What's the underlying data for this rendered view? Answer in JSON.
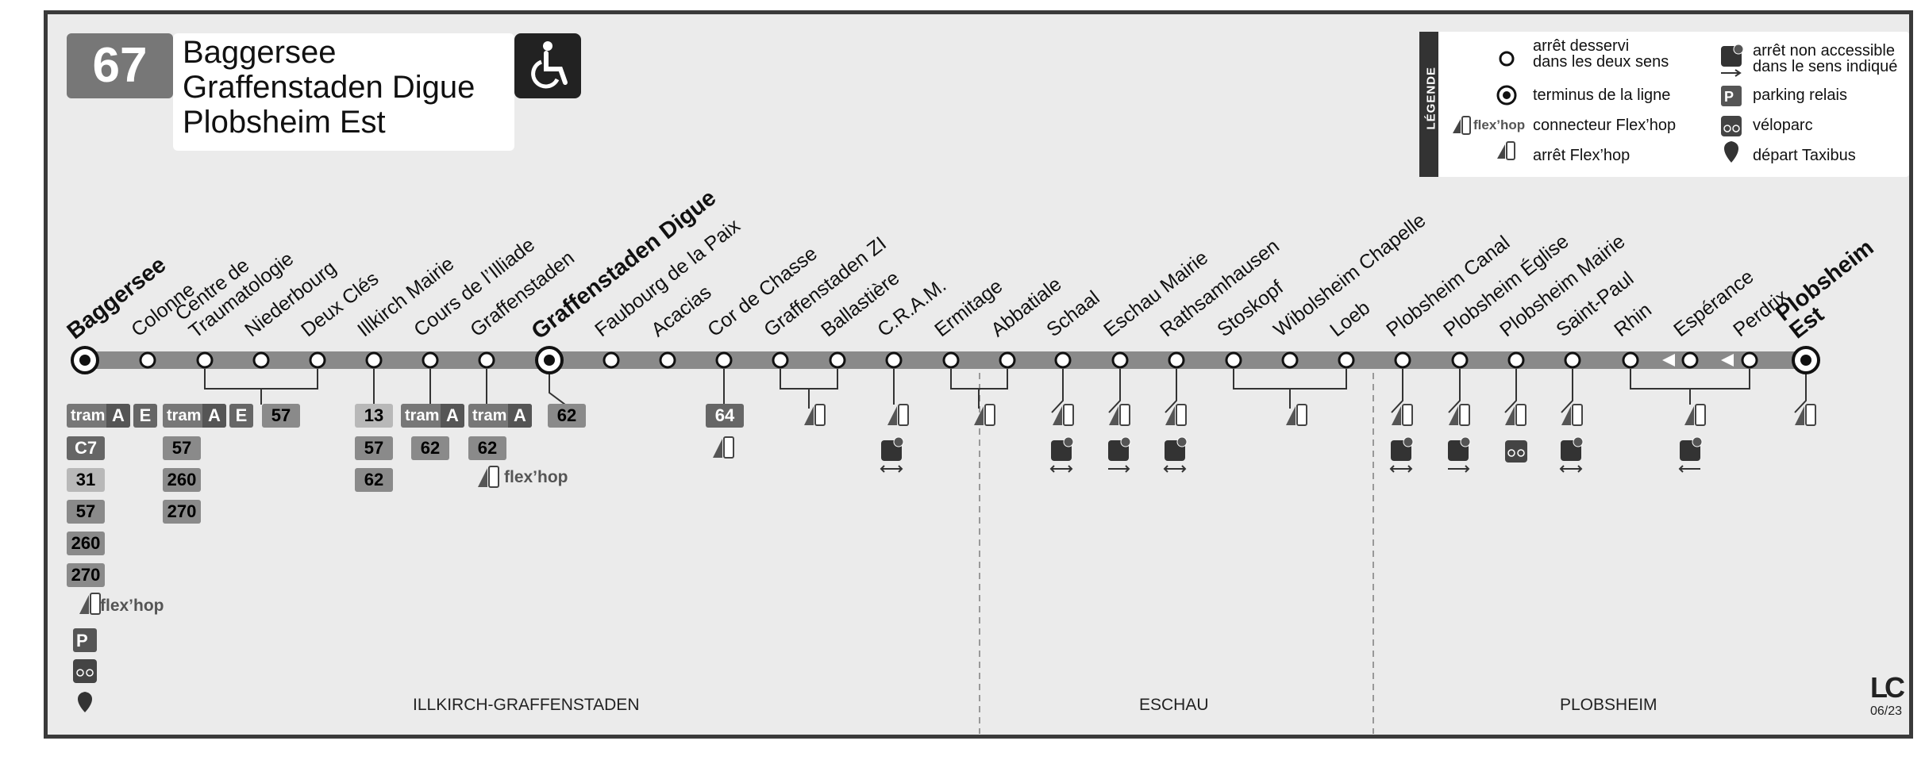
{
  "line": {
    "number": "67",
    "destinations": [
      "Baggersee",
      "Graffenstaden Digue",
      "Plobsheim Est"
    ],
    "accessible_icon": "wheelchair-icon"
  },
  "legend": {
    "title": "LÉGENDE",
    "items": [
      {
        "icon": "circle-stop-icon",
        "text": "arrêt desservi dans les deux sens",
        "lines": [
          "arrêt desservi",
          "dans les deux sens"
        ]
      },
      {
        "icon": "terminus-icon",
        "text": "terminus de la ligne"
      },
      {
        "icon": "flexhop-connector-icon",
        "prefix": "flex’hop",
        "text": "connecteur Flex’hop"
      },
      {
        "icon": "flexhop-stop-icon",
        "text": "arrêt Flex’hop"
      },
      {
        "icon": "not-accessible-icon",
        "text": "arrêt non accessible dans le sens indiqué",
        "lines": [
          "arrêt non accessible",
          "dans le sens indiqué"
        ]
      },
      {
        "icon": "park-and-ride-icon",
        "text": "parking relais"
      },
      {
        "icon": "bike-parking-icon",
        "text": "véloparc"
      },
      {
        "icon": "taxibus-icon",
        "text": "départ Taxibus"
      }
    ]
  },
  "stops": [
    {
      "name": "Baggersee",
      "terminus": true
    },
    {
      "name": "Colonne"
    },
    {
      "name": "Centre de Traumatologie",
      "lines": [
        "Centre de",
        "Traumatologie"
      ]
    },
    {
      "name": "Niederbourg"
    },
    {
      "name": "Deux Clés"
    },
    {
      "name": "Illkirch Mairie"
    },
    {
      "name": "Cours de l’Illiade"
    },
    {
      "name": "Graffenstaden"
    },
    {
      "name": "Graffenstaden Digue",
      "terminus": true
    },
    {
      "name": "Faubourg de la Paix"
    },
    {
      "name": "Acacias"
    },
    {
      "name": "Cor de Chasse"
    },
    {
      "name": "Graffenstaden ZI"
    },
    {
      "name": "Ballastière"
    },
    {
      "name": "C.R.A.M."
    },
    {
      "name": "Ermitage"
    },
    {
      "name": "Abbatiale"
    },
    {
      "name": "Schaal"
    },
    {
      "name": "Eschau Mairie"
    },
    {
      "name": "Rathsamhausen"
    },
    {
      "name": "Stoskopf"
    },
    {
      "name": "Wibolsheim Chapelle"
    },
    {
      "name": "Loeb"
    },
    {
      "name": "Plobsheim Canal"
    },
    {
      "name": "Plobsheim Église"
    },
    {
      "name": "Plobsheim Mairie"
    },
    {
      "name": "Saint-Paul"
    },
    {
      "name": "Rhin"
    },
    {
      "name": "Espérance"
    },
    {
      "name": "Perdrix"
    },
    {
      "name": "Plobsheim Est",
      "terminus": true,
      "lines": [
        "Plobsheim",
        "Est"
      ]
    }
  ],
  "connections": {
    "baggersee": [
      "tram A",
      "C7",
      "31",
      "57",
      "260",
      "270"
    ],
    "colonne": [
      "E"
    ],
    "traumatologie": [
      "tram A",
      "E",
      "57",
      "260",
      "270"
    ],
    "niederbourg_deuxcles": [
      "57"
    ],
    "illkirch_mairie": [
      "13",
      "57",
      "62"
    ],
    "cours_illiade": [
      "tram A",
      "62"
    ],
    "graffenstaden": [
      "tram A",
      "62"
    ],
    "graffenstaden_digue": [
      "62"
    ],
    "cor_de_chasse": [
      "64"
    ],
    "tram_label": "tram",
    "tram_line": "A",
    "flexhop_label": "flex’hop"
  },
  "communes": [
    "ILLKIRCH-GRAFFENSTADEN",
    "ESCHAU",
    "PLOBSHEIM"
  ],
  "footer": {
    "logo": "LC",
    "date": "06/23"
  },
  "colors": {
    "line": "#8a8a8a",
    "panel": "#ebebeb",
    "border": "#3a3a3a"
  }
}
